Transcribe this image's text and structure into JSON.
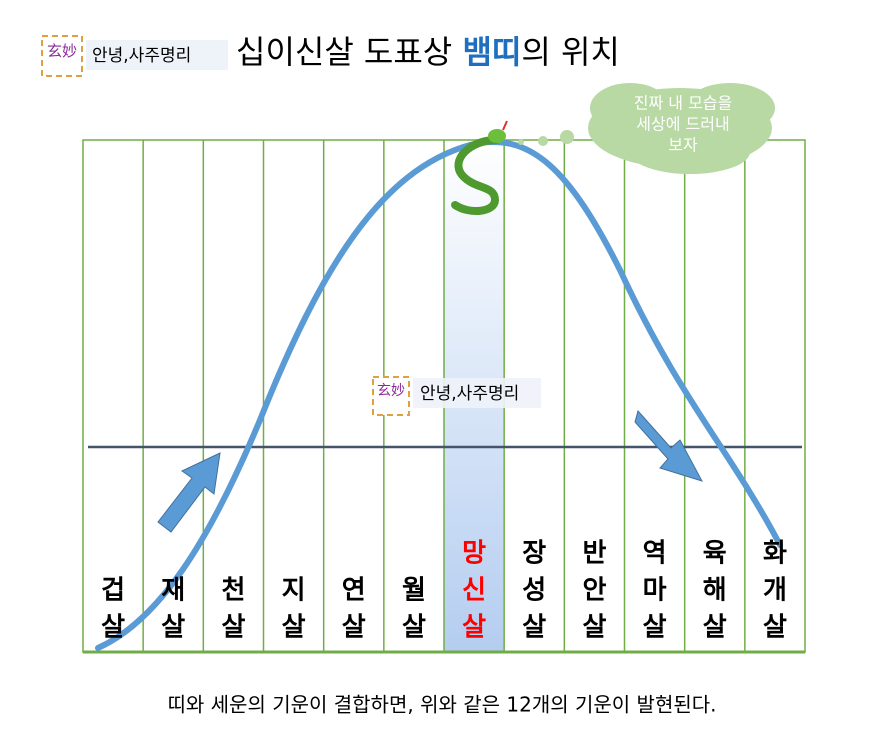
{
  "header": {
    "logo": {
      "mark": "玄妙",
      "label": "안녕,사주명리"
    },
    "title": {
      "before": "십이신살 도표상 ",
      "highlight": "뱀띠",
      "after": "의 위치"
    }
  },
  "cloud": {
    "lines": [
      "진짜 내 모습을",
      "세상에 드러내",
      "보자"
    ]
  },
  "watermark": {
    "mark": "玄妙",
    "label": "안녕,사주명리"
  },
  "columns": [
    [
      "겁",
      "살"
    ],
    [
      "재",
      "살"
    ],
    [
      "천",
      "살"
    ],
    [
      "지",
      "살"
    ],
    [
      "연",
      "살"
    ],
    [
      "월",
      "살"
    ],
    [
      "망",
      "신",
      "살"
    ],
    [
      "장",
      "성",
      "살"
    ],
    [
      "반",
      "안",
      "살"
    ],
    [
      "역",
      "마",
      "살"
    ],
    [
      "육",
      "해",
      "살"
    ],
    [
      "화",
      "개",
      "살"
    ]
  ],
  "highlight_column": 6,
  "caption": "띠와 세운의 기운이 결합하면, 위와 같은 12개의 기운이 발현된다."
}
